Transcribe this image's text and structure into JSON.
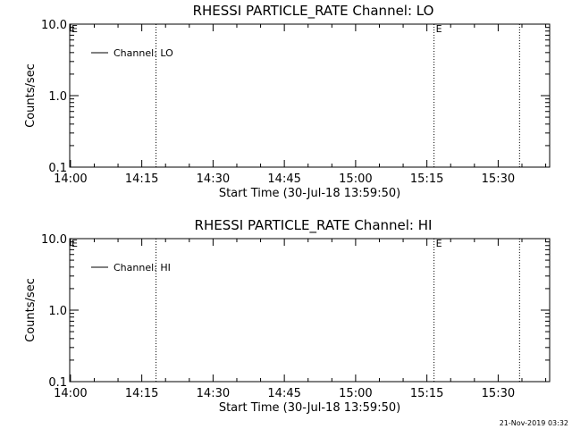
{
  "colors": {
    "background": "#ffffff",
    "foreground": "#000000"
  },
  "footer": {
    "timestamp": "21-Nov-2019 03:32"
  },
  "chart_data": [
    {
      "type": "line",
      "title": "RHESSI PARTICLE_RATE Channel: LO",
      "xlabel": "Start Time (30-Jul-18 13:59:50)",
      "ylabel": "Counts/sec",
      "yscale": "log",
      "ylim": [
        0.1,
        10.0
      ],
      "yticks": [
        0.1,
        1.0,
        10.0
      ],
      "ytick_labels": [
        "0.1",
        "1.0",
        "10.0"
      ],
      "xlim": [
        "13:59:50",
        "15:40:50"
      ],
      "xticks": [
        "14:00",
        "14:15",
        "14:30",
        "14:45",
        "15:00",
        "15:15",
        "15:30"
      ],
      "legend": {
        "entries": [
          "Channel: LO"
        ],
        "placement": "top-left"
      },
      "series": [
        {
          "name": "Channel: LO",
          "values": []
        }
      ],
      "vertical_lines": [
        {
          "time": "14:18:00",
          "label": ""
        },
        {
          "time": "15:16:30",
          "label": "E"
        },
        {
          "time": "15:34:30",
          "label": ""
        }
      ],
      "corner_label": "E"
    },
    {
      "type": "line",
      "title": "RHESSI PARTICLE_RATE Channel: HI",
      "xlabel": "Start Time (30-Jul-18 13:59:50)",
      "ylabel": "Counts/sec",
      "yscale": "log",
      "ylim": [
        0.1,
        10.0
      ],
      "yticks": [
        0.1,
        1.0,
        10.0
      ],
      "ytick_labels": [
        "0.1",
        "1.0",
        "10.0"
      ],
      "xlim": [
        "13:59:50",
        "15:40:50"
      ],
      "xticks": [
        "14:00",
        "14:15",
        "14:30",
        "14:45",
        "15:00",
        "15:15",
        "15:30"
      ],
      "legend": {
        "entries": [
          "Channel: HI"
        ],
        "placement": "top-left"
      },
      "series": [
        {
          "name": "Channel: HI",
          "values": []
        }
      ],
      "vertical_lines": [
        {
          "time": "14:18:00",
          "label": ""
        },
        {
          "time": "15:16:30",
          "label": "E"
        },
        {
          "time": "15:34:30",
          "label": ""
        }
      ],
      "corner_label": "E"
    }
  ]
}
